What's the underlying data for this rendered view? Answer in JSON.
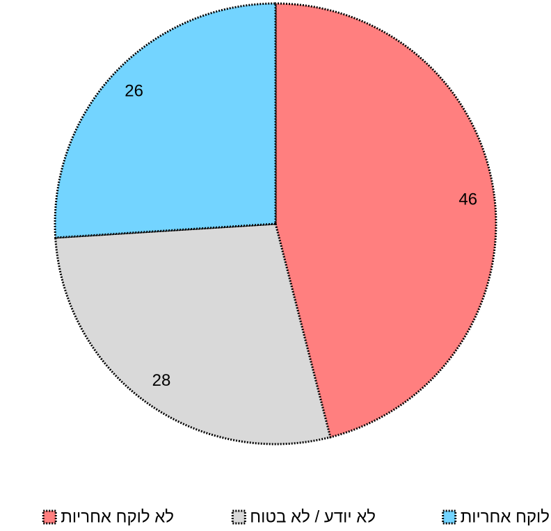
{
  "chart_data": {
    "type": "pie",
    "title": "",
    "slices": [
      {
        "label": "לא לוקח אחריות",
        "value": 46,
        "color": "#FF7F7F"
      },
      {
        "label": "לא יודע / לא בטוח",
        "value": 28,
        "color": "#D9D9D9"
      },
      {
        "label": "לוקח אחריות",
        "value": 26,
        "color": "#73D4FF"
      }
    ],
    "data_labels": [
      "46",
      "28",
      "26"
    ],
    "start_angle": "12 o'clock",
    "direction": "clockwise",
    "legend": {
      "placement": "bottom",
      "order": [
        "לוקח אחריות",
        "לא יודע / לא בטוח",
        "לא לוקח אחריות"
      ]
    },
    "slice_border": "dotted",
    "border_color": "#000000"
  }
}
